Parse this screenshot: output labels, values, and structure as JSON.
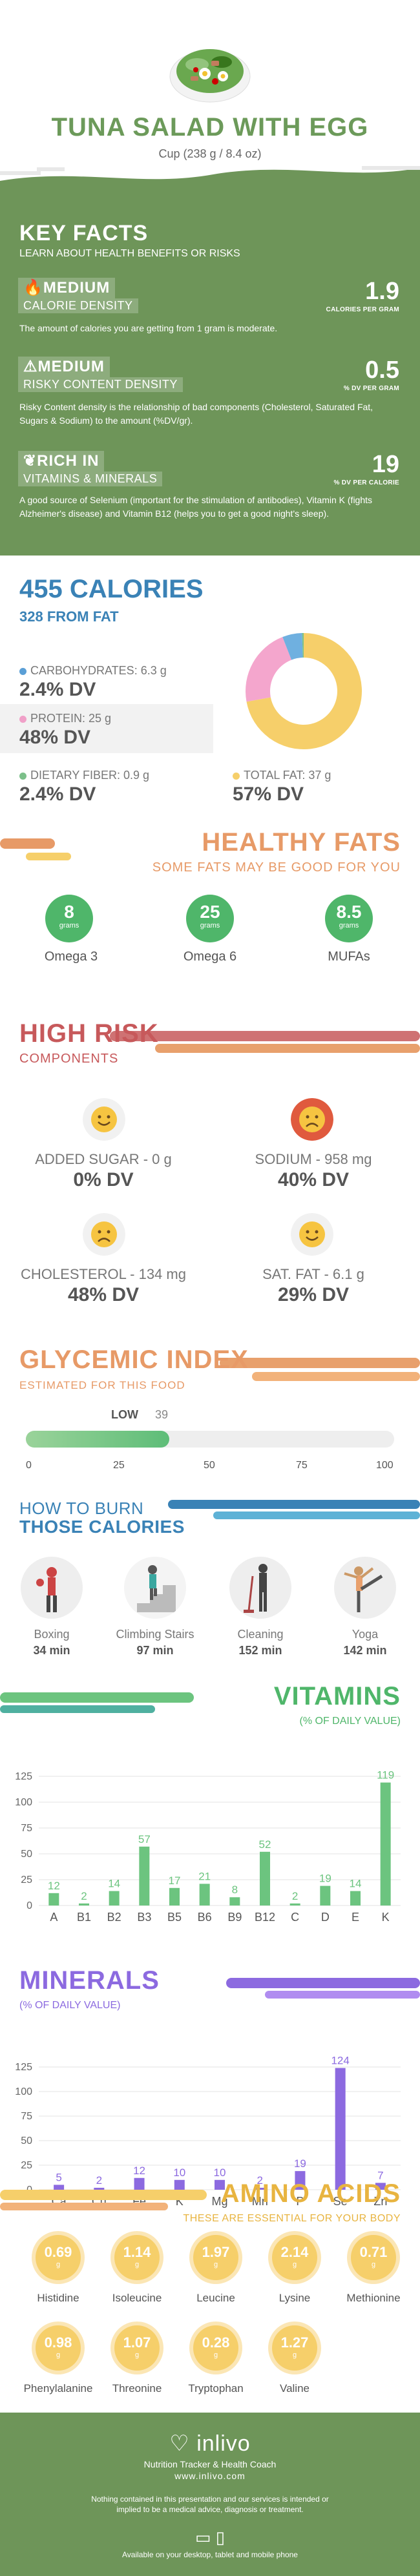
{
  "header": {
    "title": "TUNA SALAD WITH EGG",
    "serving": "Cup (238 g / 8.4 oz)"
  },
  "key_facts": {
    "title": "KEY FACTS",
    "subtitle": "LEARN ABOUT HEALTH BENEFITS OR RISKS",
    "items": [
      {
        "badge": "MEDIUM",
        "label": "CALORIE DENSITY",
        "value": "1.9",
        "unit": "CALORIES PER GRAM",
        "desc": "The amount of calories you are getting from 1 gram is moderate.",
        "icon": "flame-icon"
      },
      {
        "badge": "MEDIUM",
        "label": "RISKY CONTENT DENSITY",
        "value": "0.5",
        "unit": "% DV PER GRAM",
        "desc": "Risky Content density is the relationship of bad components (Cholesterol, Saturated Fat, Sugars & Sodium) to the amount (%DV/gr).",
        "icon": "warning-icon"
      },
      {
        "badge": "RICH  IN",
        "label": "VITAMINS & MINERALS",
        "value": "19",
        "unit": "% DV PER CALORIE",
        "desc": "A good source of Selenium (important for the stimulation of antibodies), Vitamin K (fights Alzheimer's disease) and Vitamin B12 (helps you to get a good night's sleep).",
        "icon": "leaf-icon"
      }
    ]
  },
  "calories": {
    "total": "455 CALORIES",
    "from_fat": "328 FROM FAT",
    "macros": [
      {
        "label": "CARBOHYDRATES: 6.3 g",
        "dv": "2.4% DV",
        "color": "#5a9fd6"
      },
      {
        "label": "PROTEIN: 25 g",
        "dv": "48% DV",
        "color": "#f0a0c8"
      },
      {
        "label": "DIETARY FIBER: 0.9 g",
        "dv": "2.4% DV",
        "color": "#7cc08a"
      },
      {
        "label": "TOTAL FAT: 37 g",
        "dv": "57% DV",
        "color": "#f6cf6a"
      }
    ],
    "donut": [
      {
        "name": "fat",
        "value": 328,
        "color": "#f6cf6a"
      },
      {
        "name": "protein",
        "value": 100,
        "color": "#f4a6cd"
      },
      {
        "name": "carbs",
        "value": 25,
        "color": "#6fb0e0"
      },
      {
        "name": "fiber",
        "value": 2,
        "color": "#7cc08a"
      }
    ]
  },
  "healthy_fats": {
    "title": "HEALTHY FATS",
    "subtitle": "SOME FATS MAY BE GOOD FOR YOU",
    "unit": "grams",
    "items": [
      {
        "value": "8",
        "name": "Omega 3"
      },
      {
        "value": "25",
        "name": "Omega 6"
      },
      {
        "value": "8.5",
        "name": "MUFAs"
      }
    ]
  },
  "high_risk": {
    "title": "HIGH RISK",
    "subtitle": "COMPONENTS",
    "items": [
      {
        "label": "ADDED SUGAR - 0 g",
        "dv": "0% DV",
        "mood": "happy"
      },
      {
        "label": "SODIUM - 958 mg",
        "dv": "40% DV",
        "mood": "sad"
      },
      {
        "label": "CHOLESTEROL - 134 mg",
        "dv": "48% DV",
        "mood": "sad"
      },
      {
        "label": "SAT. FAT - 6.1 g",
        "dv": "29% DV",
        "mood": "happy"
      }
    ]
  },
  "glycemic": {
    "title": "GLYCEMIC INDEX",
    "subtitle": "ESTIMATED FOR THIS FOOD",
    "level": "LOW",
    "value": 39,
    "value_label": "39",
    "ticks": [
      "0",
      "25",
      "50",
      "75",
      "100"
    ]
  },
  "burn": {
    "title1": "HOW TO BURN",
    "title2": "THOSE CALORIES",
    "items": [
      {
        "name": "Boxing",
        "minutes": "34 min",
        "icon": "boxing-icon"
      },
      {
        "name": "Climbing Stairs",
        "minutes": "97 min",
        "icon": "stairs-icon"
      },
      {
        "name": "Cleaning",
        "minutes": "152 min",
        "icon": "cleaning-icon"
      },
      {
        "name": "Yoga",
        "minutes": "142 min",
        "icon": "yoga-icon"
      }
    ]
  },
  "chart_data": [
    {
      "type": "bar",
      "title": "VITAMINS",
      "subtitle": "(% OF DAILY VALUE)",
      "categories": [
        "A",
        "B1",
        "B2",
        "B3",
        "B5",
        "B6",
        "B9",
        "B12",
        "C",
        "D",
        "E",
        "K"
      ],
      "values": [
        12,
        2,
        14,
        57,
        17,
        21,
        8,
        52,
        2,
        19,
        14,
        119
      ],
      "ylim": [
        0,
        125
      ],
      "yticks": [
        0,
        25,
        50,
        75,
        100,
        125
      ],
      "color": "#6cc47f",
      "grid": true
    },
    {
      "type": "bar",
      "title": "MINERALS",
      "subtitle": "(% OF DAILY VALUE)",
      "categories": [
        "Ca",
        "Cu",
        "Fe",
        "K",
        "Mg",
        "Mn",
        "P",
        "Se",
        "Zn"
      ],
      "values": [
        5,
        2,
        12,
        10,
        10,
        2,
        19,
        124,
        7
      ],
      "ylim": [
        0,
        125
      ],
      "yticks": [
        0,
        25,
        50,
        75,
        100,
        125
      ],
      "color": "#8c6ae0",
      "grid": true
    }
  ],
  "amino": {
    "title": "AMINO ACIDS",
    "subtitle": "THESE ARE ESSENTIAL FOR YOUR BODY",
    "unit": "g",
    "items": [
      {
        "value": "0.69",
        "name": "Histidine"
      },
      {
        "value": "1.14",
        "name": "Isoleucine"
      },
      {
        "value": "1.97",
        "name": "Leucine"
      },
      {
        "value": "2.14",
        "name": "Lysine"
      },
      {
        "value": "0.71",
        "name": "Methionine"
      },
      {
        "value": "0.98",
        "name": "Phenylalanine"
      },
      {
        "value": "1.07",
        "name": "Threonine"
      },
      {
        "value": "0.28",
        "name": "Tryptophan"
      },
      {
        "value": "1.27",
        "name": "Valine"
      }
    ]
  },
  "footer": {
    "brand": "inlivo",
    "tagline": "Nutrition Tracker & Health Coach",
    "url": "www.inlivo.com",
    "disclaimer": "Nothing contained in this presentation and our services is intended or implied to be a medical advice, diagnosis or treatment.",
    "available": "Available on your desktop, tablet and mobile phone"
  }
}
